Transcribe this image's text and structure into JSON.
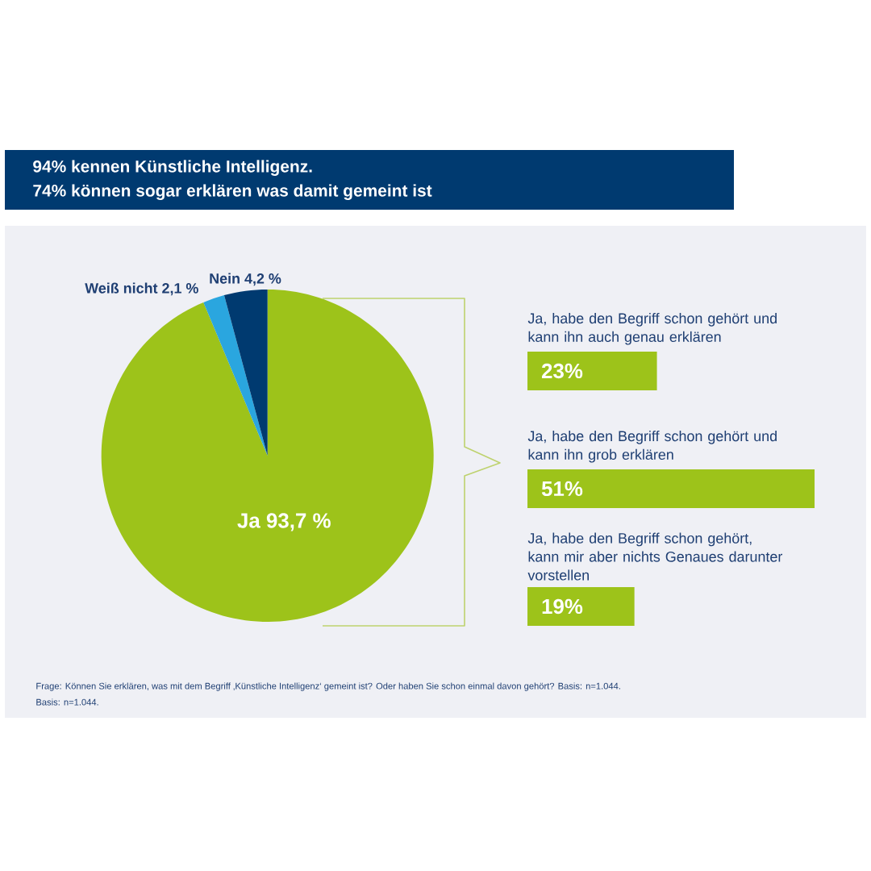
{
  "chart_data": [
    {
      "type": "pie",
      "title": "94% kennen Künstliche Intelligenz.",
      "subtitle": "74% können sogar erklären was damit gemeint ist",
      "categories": [
        "Ja",
        "Weiß nicht",
        "Nein"
      ],
      "values": [
        93.7,
        2.1,
        4.2
      ],
      "colors": [
        "#9dc31a",
        "#2aa6df",
        "#003a70"
      ],
      "value_labels": [
        "93,7 %",
        "2,1 %",
        "4,2 %"
      ],
      "annotations": [
        "Frage: Können Sie erklären, was mit dem Begriff ‚Künstliche Intelligenz‘ gemeint ist? Oder haben Sie schon einmal davon gehört? Basis: n=1.044.",
        "Basis: n=1.044."
      ]
    },
    {
      "type": "bar",
      "orientation": "horizontal",
      "categories": [
        "Ja, habe den Begriff schon gehört und kann ihn auch genau erklären",
        "Ja, habe den Begriff schon gehört und kann ihn grob erklären",
        "Ja, habe den Begriff schon gehört, kann mir aber nichts Genaues darunter vorstellen"
      ],
      "values": [
        23,
        51,
        19
      ],
      "color": "#9dc31a",
      "value_labels": [
        "23%",
        "51%",
        "19%"
      ]
    }
  ]
}
